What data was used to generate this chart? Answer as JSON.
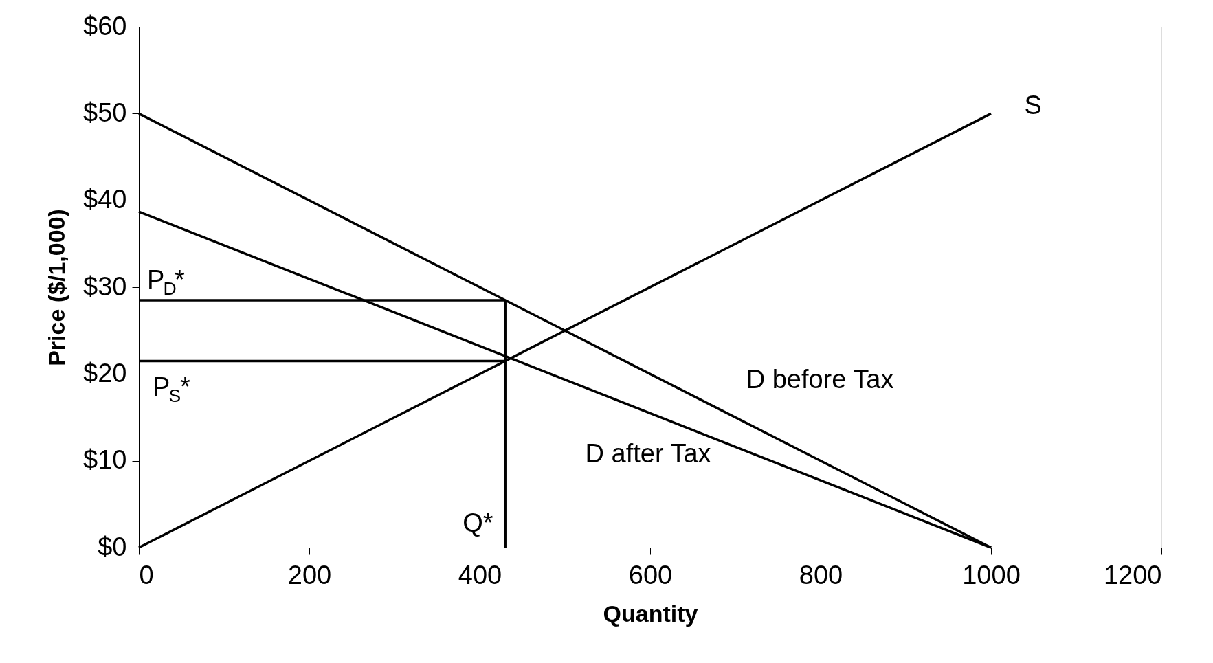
{
  "chart_data": {
    "type": "line",
    "xlabel": "Quantity",
    "ylabel": "Price ($/1,000)",
    "xlim": [
      0,
      1200
    ],
    "xticks": [
      0,
      200,
      400,
      600,
      800,
      {
        "value": 1000,
        "label": "1000"
      },
      {
        "value": 1200,
        "label": "1200"
      }
    ],
    "ylim": [
      0,
      60
    ],
    "yticks": [
      {
        "value": 0,
        "label": "$0"
      },
      {
        "value": 10,
        "label": "$10"
      },
      {
        "value": 20,
        "label": "$20"
      },
      {
        "value": 30,
        "label": "$30"
      },
      {
        "value": 40,
        "label": "$40"
      },
      {
        "value": 50,
        "label": "$50"
      },
      {
        "value": 60,
        "label": "$60"
      }
    ],
    "grid": false,
    "marker": "none",
    "line_style": "solid",
    "series": [
      {
        "name": "S",
        "color": "#000000",
        "x": [
          0,
          1000
        ],
        "values": [
          0,
          50
        ]
      },
      {
        "name": "D before Tax",
        "color": "#000000",
        "x": [
          0,
          1000
        ],
        "values": [
          50,
          0
        ]
      },
      {
        "name": "D after Tax",
        "color": "#000000",
        "x": [
          0,
          1000
        ],
        "values": [
          38.7,
          0
        ]
      },
      {
        "color": "#000000",
        "x": [
          0,
          430
        ],
        "values": [
          28.5,
          28.5
        ]
      },
      {
        "color": "#000000",
        "x": [
          0,
          430
        ],
        "values": [
          21.5,
          21.5
        ]
      },
      {
        "color": "#000000",
        "x": [
          430,
          430
        ],
        "values": [
          0,
          28.5
        ]
      }
    ],
    "annotations": [
      {
        "text": "P$_{D}$*",
        "y": 28.5
      },
      {
        "text": "P$_{S}$*",
        "y": 21.5
      },
      {
        "text": "Q*",
        "x": 430,
        "y": 0
      }
    ]
  }
}
